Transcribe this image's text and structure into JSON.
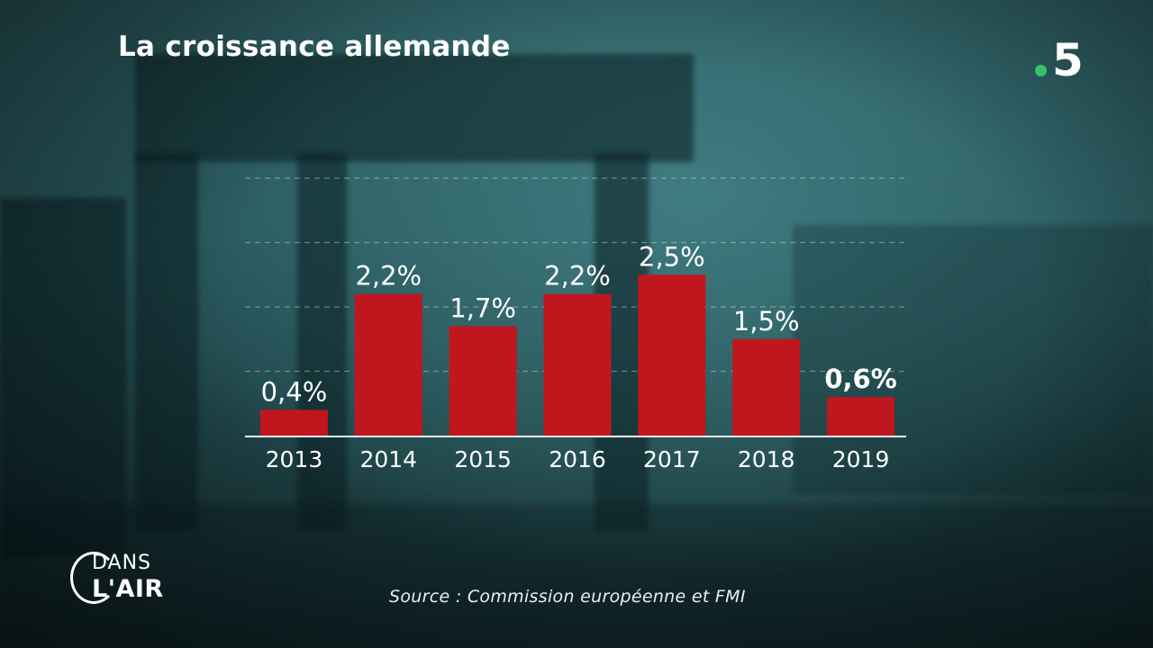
{
  "chart_data": {
    "type": "bar",
    "title": "La croissance allemande",
    "categories": [
      "2013",
      "2014",
      "2015",
      "2016",
      "2017",
      "2018",
      "2019"
    ],
    "values": [
      0.4,
      2.2,
      1.7,
      2.2,
      2.5,
      1.5,
      0.6
    ],
    "value_labels": [
      "0,4%",
      "2,2%",
      "1,7%",
      "2,2%",
      "2,5%",
      "1,5%",
      "0,6%"
    ],
    "highlight_index": 6,
    "ylim": [
      0,
      4.0
    ],
    "grid": "dashed horizontal",
    "bar_color": "#c0161e"
  },
  "source": "Source : Commission européenne et FMI",
  "channel_logo": {
    "text": "5",
    "dot_color": "#33c36b"
  },
  "show_logo": {
    "line1": "DANS",
    "line2": "L'AIR"
  }
}
